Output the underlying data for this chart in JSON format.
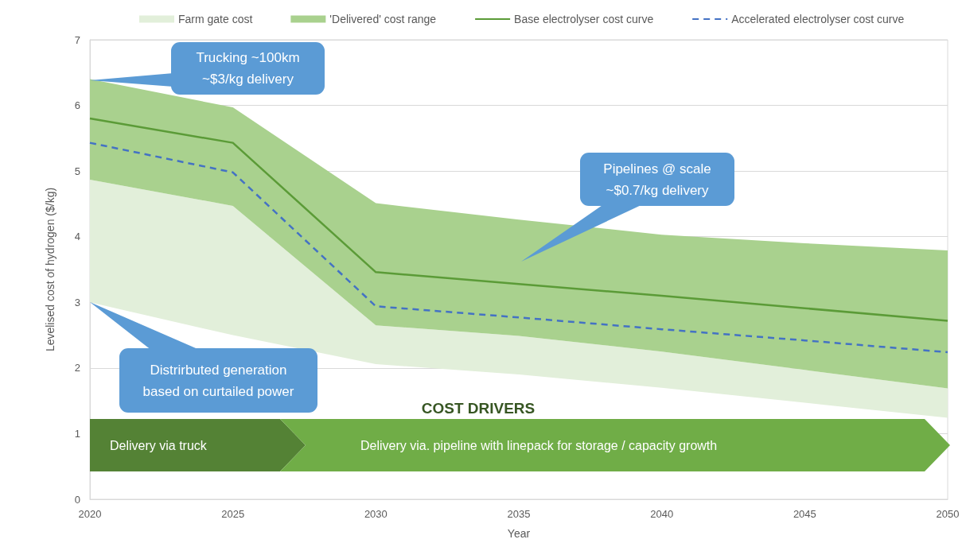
{
  "chart_data": {
    "type": "line",
    "x": [
      2020,
      2025,
      2030,
      2035,
      2040,
      2045,
      2050
    ],
    "xlim": [
      2020,
      2050
    ],
    "xticks": [
      2020,
      2025,
      2030,
      2035,
      2040,
      2045,
      2050
    ],
    "ylim": [
      0,
      7
    ],
    "yticks": [
      0,
      1,
      2,
      3,
      4,
      5,
      6,
      7
    ],
    "xlabel": "Year",
    "ylabel": "Levelised cost of hydrogen ($/kg)",
    "grid": "y",
    "legend": "top",
    "series": [
      {
        "name": "Farm gate cost",
        "type": "area",
        "color": "#e2efda",
        "values": [
          null,
          null,
          null,
          null,
          null,
          null,
          null
        ],
        "lower": [
          3.0,
          2.5,
          2.06,
          1.9,
          1.7,
          1.47,
          1.24
        ],
        "upper": [
          4.87,
          4.47,
          2.65,
          2.49,
          2.25,
          1.97,
          1.69
        ]
      },
      {
        "name": "'Delivered' cost range",
        "type": "area",
        "color": "#a9d18e",
        "values": [
          null,
          null,
          null,
          null,
          null,
          null,
          null
        ],
        "lower": [
          4.87,
          4.47,
          2.65,
          2.49,
          2.25,
          1.97,
          1.69
        ],
        "upper": [
          6.4,
          5.97,
          4.51,
          4.26,
          4.03,
          3.9,
          3.79
        ]
      },
      {
        "name": "Base electrolyser cost curve",
        "color": "#5b9b37",
        "values": [
          5.8,
          5.43,
          3.46,
          3.28,
          3.1,
          2.91,
          2.72
        ],
        "line_style": "solid"
      },
      {
        "name": "Accelerated electrolyser cost curve",
        "color": "#4472c4",
        "values": [
          5.43,
          4.98,
          2.94,
          2.77,
          2.59,
          2.42,
          2.24
        ],
        "line_style": "dashed"
      }
    ],
    "annotations": [
      "Trucking ~100km\n~$3/kg delivery",
      "Pipelines @ scale\n~$0.7/kg delivery",
      "Distrirbuted generation\nbased on curtailed power",
      "COST DRIVERS",
      "Delivery via truck",
      "Delivery via. pipeline with linepack for storage / capacity growth"
    ]
  }
}
